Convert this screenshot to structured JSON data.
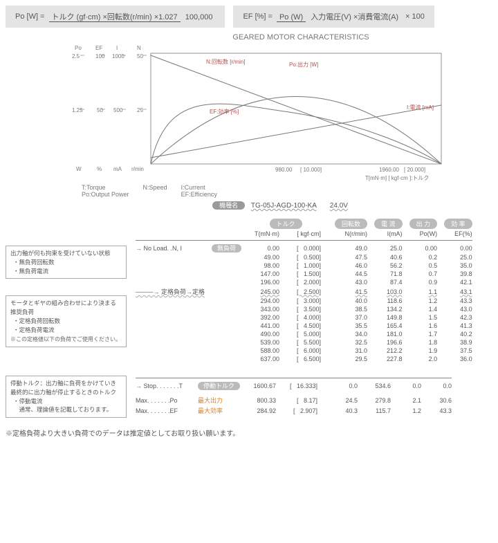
{
  "formulas": {
    "po_left": "Po [W] =",
    "po_num": "トルク (gf·cm) ×回転数(r/min) ×1.027",
    "po_den": "100,000",
    "ef_left": "EF [%] =",
    "ef_num": "Po (W)",
    "ef_den": "入力電圧(V) ×消費電流(A)",
    "ef_right": "× 100"
  },
  "chart": {
    "title": "GEARED MOTOR CHARACTERISTICS",
    "axes": {
      "po": {
        "label": "Po",
        "unit": "W",
        "min": 0,
        "mid": 1.25,
        "max": 2.5
      },
      "ef": {
        "label": "EF",
        "unit": "%",
        "min": 0,
        "mid": 50,
        "max": 100
      },
      "i": {
        "label": "I",
        "unit": "mA",
        "min": 0,
        "mid": 500,
        "max": 1000
      },
      "n": {
        "label": "N",
        "unit": "r/min",
        "min": 0,
        "mid": 25,
        "max": 50
      }
    },
    "curve_labels": {
      "n": "N:回転数 [r/min]",
      "po": "Po:出力 [W]",
      "ef": "EF:効率 [%]",
      "i": "I:電流 [mA]"
    },
    "colors": {
      "line": "#777777",
      "red": "#b0504f"
    },
    "x_ticks": [
      {
        "t1": "980.00",
        "t2": "[   10.000]"
      },
      {
        "t1": "1960.00",
        "t2": "[   20.000]"
      }
    ],
    "x_caption": "T[mN·m]   [ kgf·cm ]:トルク",
    "legend": {
      "t": "T:Torque",
      "po": "Po:Output Power",
      "n": "N:Speed",
      "i": "I:Current",
      "ef": "EF:Efficiency"
    },
    "model_label": "機種名",
    "model": "TG-05J-AGD-100-KA",
    "voltage": "24.0V"
  },
  "headers": {
    "torque": "トルク",
    "speed": "回転数",
    "current": "電 流",
    "output": "出 力",
    "eff": "効 率",
    "t_mnm": "T(mN·m)",
    "t_kgf": "[    kgf·cm]",
    "n": "N(r/min)",
    "i": "I(mA)",
    "po": "Po(W)",
    "ef": "EF(%)"
  },
  "notes": {
    "noload_title": "出力軸が何も拘束を受けていない状態",
    "noload_items": [
      "・無負荷回転数",
      "・無負荷電流"
    ],
    "rated_title": "モータとギヤの組み合わせにより決まる推奨負荷",
    "rated_items": [
      "・定格負荷回転数",
      "・定格負荷電流"
    ],
    "rated_caption": "※この定格値以下の負荷でご使用ください。",
    "stop_title": "停動トルク：出力軸に負荷をかけていき最終的に出力軸が停止するときのトルク",
    "stop_items": [
      "・停動電流",
      "　通常、理論値を記載しております。"
    ]
  },
  "row_labels": {
    "noload": "No  Load. .N, I",
    "noload_pill": "無負荷",
    "rated": "定格負荷→定格",
    "stop": "Stop. . . . . . .T",
    "stop_pill": "停動トルク",
    "maxpo": "Max. . . . . . .Po",
    "maxpo_pill": "最大出力",
    "maxef": "Max. . . . . . .EF",
    "maxef_pill": "最大効率"
  },
  "rows": [
    {
      "kind": "noload",
      "t": "0.00",
      "k": "0.000]",
      "n": "49.0",
      "i": "25.0",
      "po": "0.00",
      "ef": "0.00"
    },
    {
      "t": "49.00",
      "k": "0.500]",
      "n": "47.5",
      "i": "40.6",
      "po": "0.2",
      "ef": "25.0"
    },
    {
      "t": "98.00",
      "k": "1.000]",
      "n": "46.0",
      "i": "56.2",
      "po": "0.5",
      "ef": "35.0"
    },
    {
      "t": "147.00",
      "k": "1.500]",
      "n": "44.5",
      "i": "71.8",
      "po": "0.7",
      "ef": "39.8"
    },
    {
      "t": "196.00",
      "k": "2.000]",
      "n": "43.0",
      "i": "87.4",
      "po": "0.9",
      "ef": "42.1"
    },
    {
      "kind": "rated",
      "t": "245.00",
      "k": "2.500]",
      "n": "41.5",
      "i": "103.0",
      "po": "1.1",
      "ef": "43.1"
    },
    {
      "t": "294.00",
      "k": "3.000]",
      "n": "40.0",
      "i": "118.6",
      "po": "1.2",
      "ef": "43.3"
    },
    {
      "t": "343.00",
      "k": "3.500]",
      "n": "38.5",
      "i": "134.2",
      "po": "1.4",
      "ef": "43.0"
    },
    {
      "t": "392.00",
      "k": "4.000]",
      "n": "37.0",
      "i": "149.8",
      "po": "1.5",
      "ef": "42.3"
    },
    {
      "t": "441.00",
      "k": "4.500]",
      "n": "35.5",
      "i": "165.4",
      "po": "1.6",
      "ef": "41.3"
    },
    {
      "t": "490.00",
      "k": "5.000]",
      "n": "34.0",
      "i": "181.0",
      "po": "1.7",
      "ef": "40.2"
    },
    {
      "t": "539.00",
      "k": "5.500]",
      "n": "32.5",
      "i": "196.6",
      "po": "1.8",
      "ef": "38.9"
    },
    {
      "t": "588.00",
      "k": "6.000]",
      "n": "31.0",
      "i": "212.2",
      "po": "1.9",
      "ef": "37.5"
    },
    {
      "t": "637.00",
      "k": "6.500]",
      "n": "29.5",
      "i": "227.8",
      "po": "2.0",
      "ef": "36.0"
    }
  ],
  "rows2": [
    {
      "kind": "stop",
      "t": "1600.67",
      "k": "16.333]",
      "n": "0.0",
      "i": "534.6",
      "po": "0.0",
      "ef": "0.0"
    },
    {
      "kind": "maxpo",
      "t": "800.33",
      "k": "8.17]",
      "n": "24.5",
      "i": "279.8",
      "po": "2.1",
      "ef": "30.6"
    },
    {
      "kind": "maxef",
      "t": "284.92",
      "k": "2.907]",
      "n": "40.3",
      "i": "115.7",
      "po": "1.2",
      "ef": "43.3"
    }
  ],
  "footnote": "※定格負荷より大きい負荷でのデータは推定値としてお取り扱い願います。"
}
